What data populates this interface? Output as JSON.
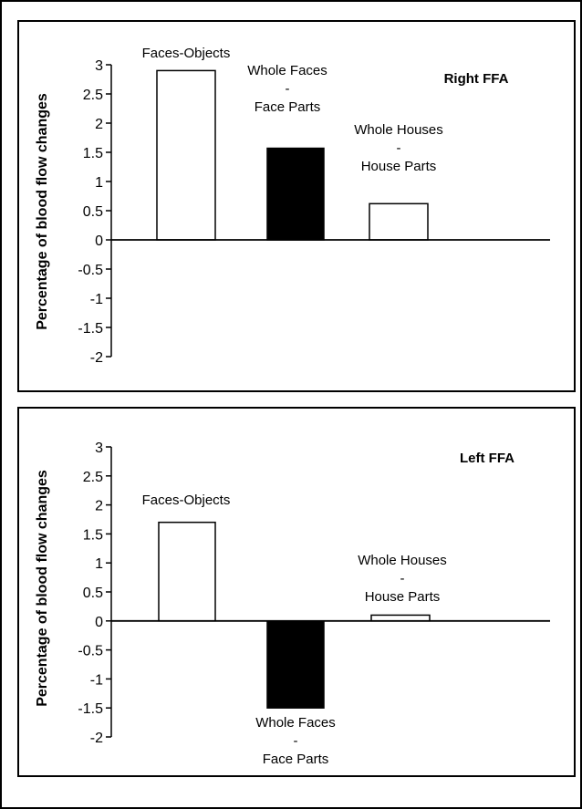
{
  "chart_data": [
    {
      "type": "bar",
      "title": "Right FFA",
      "ylabel": "Percentage of blood flow changes",
      "ylim": [
        -2,
        3
      ],
      "yticks": [
        "3",
        "2.5",
        "2",
        "1.5",
        "1",
        "0.5",
        "0",
        "-0.5",
        "-1",
        "-1.5",
        "-2"
      ],
      "categories": [
        "Faces-Objects",
        "Whole Faces - Face Parts",
        "Whole Houses - House Parts"
      ],
      "bar_labels": [
        [
          "Faces-Objects"
        ],
        [
          "Whole Faces",
          "-",
          "Face Parts"
        ],
        [
          "Whole Houses",
          "-",
          "House Parts"
        ]
      ],
      "values": [
        2.9,
        1.57,
        0.62
      ],
      "bar_fills": [
        "#ffffff",
        "#000000",
        "#ffffff"
      ],
      "grid": false
    },
    {
      "type": "bar",
      "title": "Left FFA",
      "ylabel": "Percentage of blood flow changes",
      "ylim": [
        -2,
        3
      ],
      "yticks": [
        "3",
        "2.5",
        "2",
        "1.5",
        "1",
        "0.5",
        "0",
        "-0.5",
        "-1",
        "-1.5",
        "-2"
      ],
      "categories": [
        "Faces-Objects",
        "Whole Faces - Face Parts",
        "Whole Houses - House Parts"
      ],
      "bar_labels": [
        [
          "Faces-Objects"
        ],
        [
          "Whole Faces",
          "-",
          "Face Parts"
        ],
        [
          "Whole Houses",
          "-",
          "House Parts"
        ]
      ],
      "values": [
        1.7,
        -1.5,
        0.1
      ],
      "bar_fills": [
        "#ffffff",
        "#000000",
        "#ffffff"
      ],
      "grid": false
    }
  ]
}
